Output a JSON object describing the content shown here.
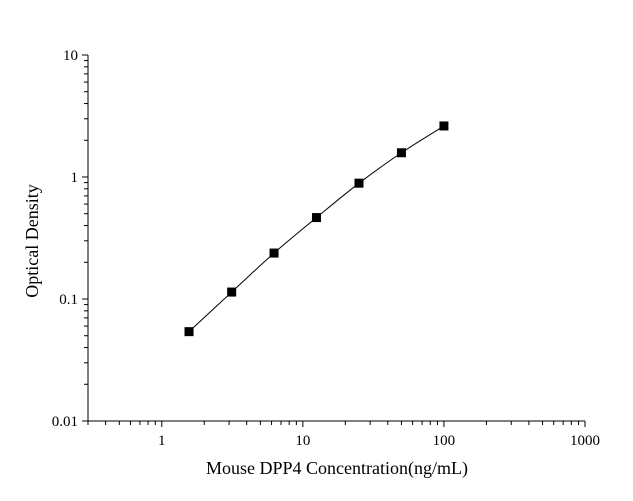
{
  "chart_data": {
    "type": "scatter",
    "title": "",
    "xlabel": "Mouse DPP4 Concentration(ng/mL)",
    "ylabel": "Optical Density",
    "x_scale": "log",
    "y_scale": "log",
    "xlim": [
      0.3,
      1000
    ],
    "ylim": [
      0.01,
      10
    ],
    "x_ticks": [
      {
        "value": 1,
        "label": "1"
      },
      {
        "value": 10,
        "label": "10"
      },
      {
        "value": 100,
        "label": "100"
      },
      {
        "value": 1000,
        "label": "1000"
      }
    ],
    "y_ticks": [
      {
        "value": 0.01,
        "label": "0.01"
      },
      {
        "value": 0.1,
        "label": "0.1"
      },
      {
        "value": 1,
        "label": "1"
      },
      {
        "value": 10,
        "label": "10"
      }
    ],
    "grid": false,
    "legend": "none",
    "marker": "square",
    "line_color": "#000000",
    "marker_color": "#000000",
    "series": [
      {
        "x": [
          1.56,
          3.13,
          6.25,
          12.5,
          25,
          50,
          100
        ],
        "y": [
          0.054,
          0.114,
          0.238,
          0.465,
          0.89,
          1.58,
          2.62
        ]
      }
    ]
  }
}
